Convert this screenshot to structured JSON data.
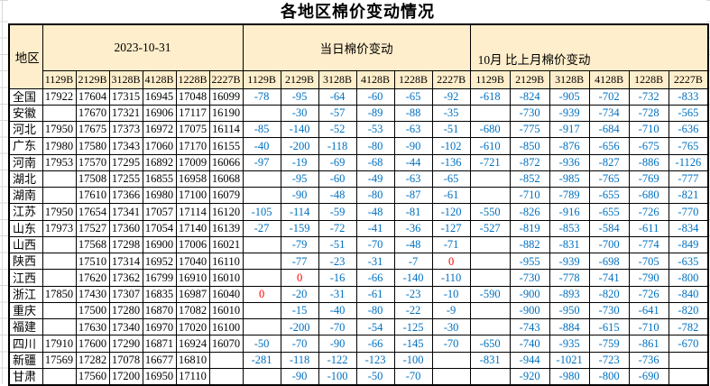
{
  "title": "各地区棉价变动情况",
  "colors": {
    "header_fill": "#FFEECB",
    "price_text": "#000000",
    "negative_change": "#0070C0",
    "zero_change": "#FF0000",
    "border": "#000000"
  },
  "table": {
    "region_header": "地区",
    "groups": [
      {
        "label": "2023-10-31"
      },
      {
        "label": "当日棉价变动"
      },
      {
        "label": "10月 比上月棉价变动"
      }
    ],
    "grade_codes": [
      "1129B",
      "2129B",
      "3128B",
      "4128B",
      "1228B",
      "2227B"
    ],
    "rows": [
      {
        "region": "全国",
        "prices": [
          "17922",
          "17604",
          "17315",
          "16945",
          "17048",
          "16099"
        ],
        "daily": [
          "-78",
          "-95",
          "-64",
          "-60",
          "-65",
          "-92"
        ],
        "monthly": [
          "-618",
          "-824",
          "-905",
          "-702",
          "-732",
          "-833"
        ]
      },
      {
        "region": "安徽",
        "prices": [
          "",
          "17670",
          "17321",
          "16906",
          "17117",
          "16190"
        ],
        "daily": [
          "",
          "-30",
          "-57",
          "-89",
          "-88",
          "-35"
        ],
        "monthly": [
          "",
          "-730",
          "-939",
          "-734",
          "-728",
          "-565"
        ]
      },
      {
        "region": "河北",
        "prices": [
          "17950",
          "17675",
          "17373",
          "16972",
          "17075",
          "16114"
        ],
        "daily": [
          "-85",
          "-140",
          "-52",
          "-53",
          "-63",
          "-51"
        ],
        "monthly": [
          "-680",
          "-775",
          "-917",
          "-684",
          "-710",
          "-636"
        ]
      },
      {
        "region": "广东",
        "prices": [
          "17980",
          "17580",
          "17343",
          "17060",
          "17170",
          "16155"
        ],
        "daily": [
          "-40",
          "-200",
          "-118",
          "-80",
          "-90",
          "-102"
        ],
        "monthly": [
          "-610",
          "-850",
          "-876",
          "-656",
          "-675",
          "-765"
        ]
      },
      {
        "region": "河南",
        "prices": [
          "17953",
          "17570",
          "17295",
          "16892",
          "17009",
          "16066"
        ],
        "daily": [
          "-97",
          "-19",
          "-69",
          "-68",
          "-44",
          "-136"
        ],
        "monthly": [
          "-721",
          "-872",
          "-936",
          "-827",
          "-886",
          "-1126"
        ]
      },
      {
        "region": "湖北",
        "prices": [
          "",
          "17508",
          "17255",
          "16855",
          "16958",
          "16068"
        ],
        "daily": [
          "",
          "-95",
          "-60",
          "-49",
          "-63",
          "-65"
        ],
        "monthly": [
          "",
          "-852",
          "-985",
          "-765",
          "-769",
          "-777"
        ]
      },
      {
        "region": "湖南",
        "prices": [
          "",
          "17610",
          "17366",
          "16980",
          "17100",
          "16079"
        ],
        "daily": [
          "",
          "-90",
          "-48",
          "-80",
          "-87",
          "-61"
        ],
        "monthly": [
          "",
          "-710",
          "-789",
          "-655",
          "-680",
          "-821"
        ]
      },
      {
        "region": "江苏",
        "prices": [
          "17950",
          "17654",
          "17341",
          "17057",
          "17114",
          "16120"
        ],
        "daily": [
          "-105",
          "-114",
          "-59",
          "-48",
          "-81",
          "-120"
        ],
        "monthly": [
          "-550",
          "-826",
          "-916",
          "-655",
          "-726",
          "-770"
        ]
      },
      {
        "region": "山东",
        "prices": [
          "17973",
          "17527",
          "17360",
          "17054",
          "17140",
          "16139"
        ],
        "daily": [
          "-27",
          "-159",
          "-72",
          "-41",
          "-36",
          "-127"
        ],
        "monthly": [
          "-527",
          "-819",
          "-853",
          "-584",
          "-611",
          "-834"
        ]
      },
      {
        "region": "山西",
        "prices": [
          "",
          "17568",
          "17298",
          "16900",
          "17006",
          "16021"
        ],
        "daily": [
          "",
          "-79",
          "-51",
          "-70",
          "-48",
          "-71"
        ],
        "monthly": [
          "",
          "-882",
          "-831",
          "-700",
          "-774",
          "-849"
        ]
      },
      {
        "region": "陕西",
        "prices": [
          "",
          "17510",
          "17314",
          "16952",
          "17040",
          "16110"
        ],
        "daily": [
          "",
          "-77",
          "-23",
          "-31",
          "-7",
          "0"
        ],
        "monthly": [
          "",
          "-955",
          "-939",
          "-698",
          "-705",
          "-635"
        ]
      },
      {
        "region": "江西",
        "prices": [
          "",
          "17620",
          "17362",
          "16799",
          "16910",
          "16010"
        ],
        "daily": [
          "",
          "0",
          "-16",
          "-66",
          "-140",
          "-110"
        ],
        "monthly": [
          "",
          "-730",
          "-778",
          "-741",
          "-790",
          "-800"
        ]
      },
      {
        "region": "浙江",
        "prices": [
          "17850",
          "17430",
          "17307",
          "16835",
          "16987",
          "16040"
        ],
        "daily": [
          "0",
          "-20",
          "-31",
          "-61",
          "-23",
          "-10"
        ],
        "monthly": [
          "-590",
          "-900",
          "-893",
          "-820",
          "-726",
          "-840"
        ]
      },
      {
        "region": "重庆",
        "prices": [
          "",
          "17500",
          "17280",
          "16870",
          "17082",
          "16010"
        ],
        "daily": [
          "",
          "-15",
          "-40",
          "-80",
          "-22",
          "-9"
        ],
        "monthly": [
          "",
          "-900",
          "-950",
          "-730",
          "-641",
          "-820"
        ]
      },
      {
        "region": "福建",
        "prices": [
          "",
          "17630",
          "17340",
          "16970",
          "17020",
          "16100"
        ],
        "daily": [
          "",
          "-200",
          "-70",
          "-54",
          "-125",
          "-30"
        ],
        "monthly": [
          "",
          "-743",
          "-884",
          "-615",
          "-710",
          "-782"
        ]
      },
      {
        "region": "四川",
        "prices": [
          "17910",
          "17600",
          "17290",
          "16871",
          "16924",
          "16070"
        ],
        "daily": [
          "-50",
          "-70",
          "-90",
          "-66",
          "-145",
          "-70"
        ],
        "monthly": [
          "-650",
          "-740",
          "-935",
          "-759",
          "-861",
          "-670"
        ]
      },
      {
        "region": "新疆",
        "prices": [
          "17569",
          "17282",
          "17078",
          "16677",
          "16810",
          ""
        ],
        "daily": [
          "-281",
          "-118",
          "-122",
          "-123",
          "-100",
          ""
        ],
        "monthly": [
          "-831",
          "-944",
          "-1021",
          "-723",
          "-736",
          ""
        ]
      },
      {
        "region": "甘肃",
        "prices": [
          "",
          "17560",
          "17200",
          "16950",
          "17110",
          ""
        ],
        "daily": [
          "",
          "-90",
          "-100",
          "-50",
          "-70",
          ""
        ],
        "monthly": [
          "",
          "-920",
          "-980",
          "-800",
          "-690",
          ""
        ]
      }
    ]
  }
}
